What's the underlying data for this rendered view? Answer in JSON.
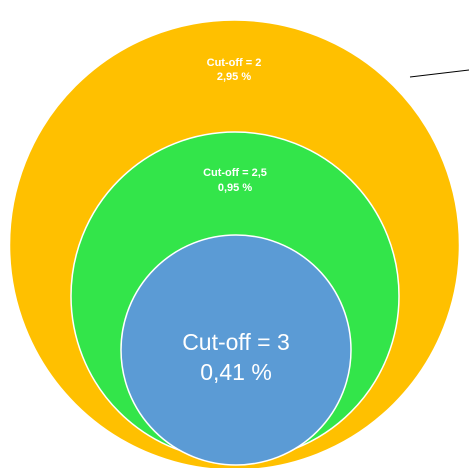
{
  "diagram": {
    "outer": {
      "label": "Cut-off = 2",
      "value": "2,95 %",
      "color": "#FFC000"
    },
    "middle": {
      "label": "Cut-off = 2,5",
      "value": "0,95 %",
      "color": "#33E54A"
    },
    "inner": {
      "label": "Cut-off = 3",
      "value": "0,41 %",
      "color": "#5B9BD5"
    },
    "outline_color": "#FFFFFF",
    "leader_line_color": "#000000"
  }
}
